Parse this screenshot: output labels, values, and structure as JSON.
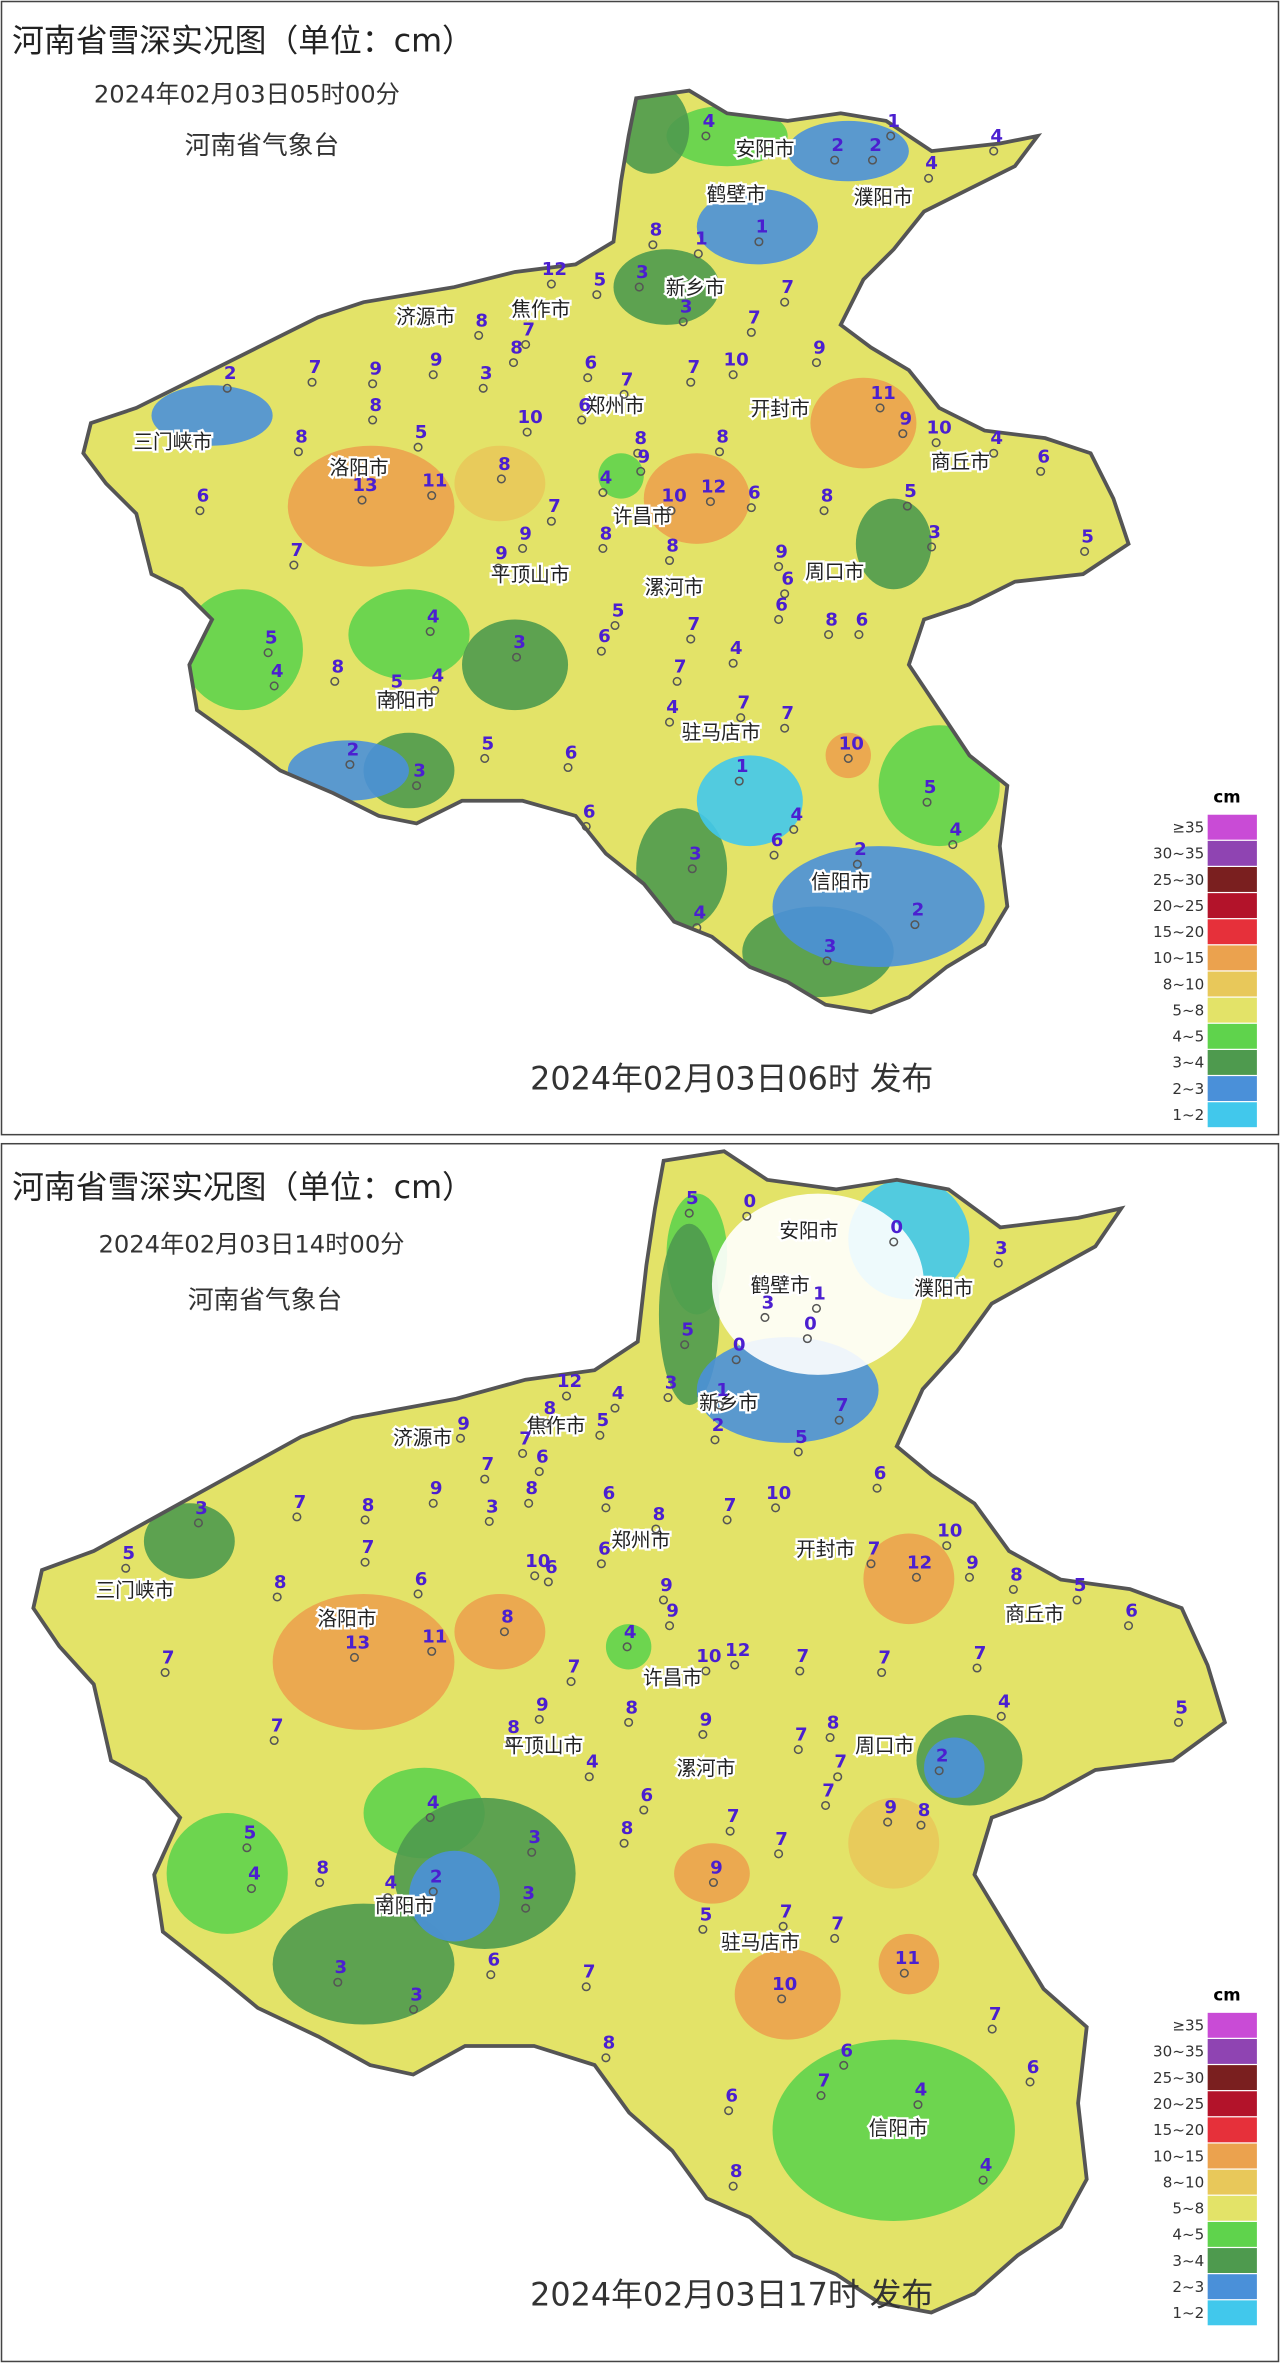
{
  "panels": [
    {
      "title": "河南省雪深实况图（单位：cm）",
      "observed": "2024年02月03日05时00分",
      "agency": "河南省气象台",
      "issued": "2024年02月03日06时 发布",
      "cities": [
        "安阳市",
        "鹤壁市",
        "濮阳市",
        "新乡市",
        "济源市",
        "焦作市",
        "三门峡市",
        "郑州市",
        "开封市",
        "洛阳市",
        "商丘市",
        "许昌市",
        "平顶山市",
        "漯河市",
        "周口市",
        "南阳市",
        "驻马店市",
        "信阳市"
      ],
      "stations": [
        4,
        2,
        2,
        1,
        4,
        4,
        1,
        1,
        8,
        12,
        5,
        3,
        3,
        7,
        7,
        9,
        10,
        7,
        7,
        6,
        6,
        10,
        8,
        3,
        8,
        7,
        9,
        9,
        8,
        7,
        2,
        8,
        5,
        8,
        11,
        13,
        6,
        7,
        4,
        8,
        9,
        7,
        9,
        9,
        8,
        10,
        12,
        8,
        8,
        6,
        8,
        11,
        9,
        10,
        4,
        6,
        5,
        3,
        5,
        9,
        6,
        6,
        8,
        6,
        5,
        6,
        7,
        7,
        4,
        4,
        7,
        7,
        10,
        5,
        4,
        2,
        6,
        4,
        1,
        3,
        4,
        2,
        3,
        5,
        4,
        8,
        5,
        4,
        4,
        3,
        5,
        6,
        6,
        2,
        3
      ]
    },
    {
      "title": "河南省雪深实况图（单位：cm）",
      "observed": "2024年02月03日14时00分",
      "agency": "河南省气象台",
      "issued": "2024年02月03日17时 发布",
      "cities": [
        "安阳市",
        "鹤壁市",
        "濮阳市",
        "新乡市",
        "济源市",
        "焦作市",
        "三门峡市",
        "郑州市",
        "开封市",
        "洛阳市",
        "商丘市",
        "许昌市",
        "平顶山市",
        "漯河市",
        "周口市",
        "南阳市",
        "驻马店市",
        "信阳市"
      ],
      "stations": [
        5,
        0,
        0,
        3,
        3,
        1,
        0,
        0,
        5,
        3,
        1,
        2,
        5,
        7,
        6,
        12,
        8,
        4,
        5,
        9,
        7,
        7,
        6,
        8,
        3,
        9,
        8,
        7,
        7,
        3,
        5,
        8,
        6,
        10,
        6,
        6,
        6,
        8,
        7,
        10,
        7,
        12,
        10,
        9,
        8,
        5,
        6,
        5,
        7,
        7,
        7,
        12,
        10,
        9,
        9,
        4,
        8,
        11,
        13,
        7,
        7,
        7,
        8,
        9,
        9,
        8,
        4,
        6,
        8,
        7,
        7,
        8,
        7,
        7,
        7,
        9,
        8,
        2,
        4,
        4,
        3,
        3,
        2,
        4,
        8,
        5,
        4,
        3,
        3,
        6,
        7,
        9,
        5,
        7,
        7,
        10,
        11,
        7,
        6,
        6,
        7,
        6,
        8,
        8,
        4,
        4
      ]
    }
  ],
  "legend": {
    "unit": "cm",
    "items": [
      {
        "label": "≥35",
        "color": "#c94bd6"
      },
      {
        "label": "30~35",
        "color": "#8f44b2"
      },
      {
        "label": "25~30",
        "color": "#7a1f1f"
      },
      {
        "label": "20~25",
        "color": "#b3132a"
      },
      {
        "label": "15~20",
        "color": "#e6303a"
      },
      {
        "label": "10~15",
        "color": "#eba24e"
      },
      {
        "label": "8~10",
        "color": "#e8c85a"
      },
      {
        "label": "5~8",
        "color": "#e3e368"
      },
      {
        "label": "4~5",
        "color": "#5fd34c"
      },
      {
        "label": "3~4",
        "color": "#4e9a4e"
      },
      {
        "label": "2~3",
        "color": "#4a90d9"
      },
      {
        "label": "1~2",
        "color": "#41c8ec"
      }
    ]
  }
}
